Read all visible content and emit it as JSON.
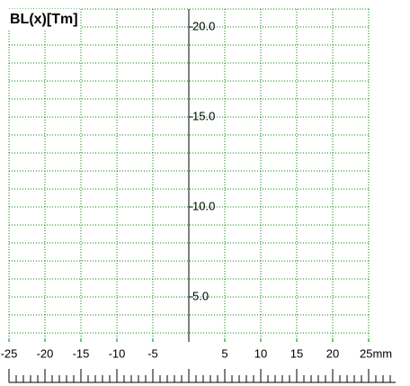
{
  "chart_data": {
    "type": "line",
    "title": "BL(x)[Tm]",
    "series": [],
    "xlim": [
      -25,
      25
    ],
    "xticks": [
      -25,
      -20,
      -15,
      -10,
      -5,
      5,
      10,
      15,
      20,
      {
        "value": 25,
        "label": "25mm"
      }
    ],
    "ylim": [
      2.5,
      21
    ],
    "yticks": [
      {
        "value": 5,
        "label": "5.0"
      },
      {
        "value": 10,
        "label": "10.0"
      },
      {
        "value": 15,
        "label": "15.0"
      },
      {
        "value": 20,
        "label": "20.0"
      }
    ],
    "xgrid": [
      -25,
      -20,
      -15,
      -10,
      -5,
      0,
      5,
      10,
      15,
      20,
      25
    ],
    "ygrid": [
      3,
      4,
      5,
      6,
      7,
      8,
      9,
      10,
      11,
      12,
      13,
      14,
      15,
      16,
      17,
      18,
      19,
      20,
      21
    ],
    "grid": true,
    "grid_color": "#008000",
    "axis_color": "#000000"
  }
}
